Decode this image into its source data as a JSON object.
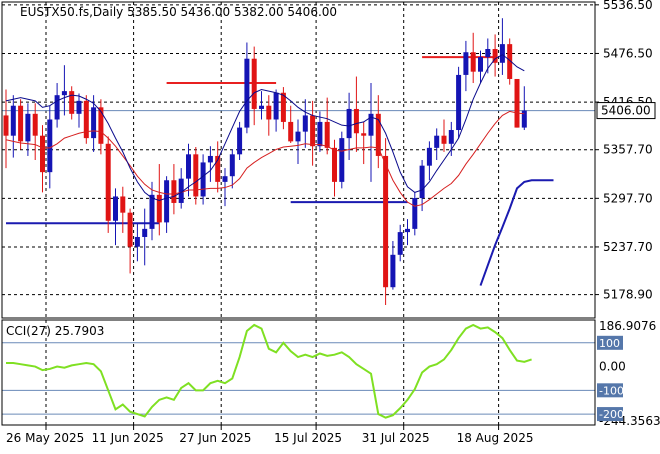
{
  "chart_data": [
    {
      "type": "candlestick",
      "header": {
        "symbol": "EUSTX50.fs,Daily",
        "open": "5385.50",
        "high": "5436.00",
        "low": "5382.00",
        "close": "5406.00"
      },
      "current_price_label": "5406.00",
      "current_price": 5406,
      "ylim": [
        5150,
        5540
      ],
      "y_ticks": [
        {
          "value": 5536.5,
          "label": "5536.50"
        },
        {
          "value": 5476.5,
          "label": "5476.50"
        },
        {
          "value": 5416.5,
          "label": "5416.50"
        },
        {
          "value": 5357.7,
          "label": "5357.70"
        },
        {
          "value": 5297.7,
          "label": "5297.70"
        },
        {
          "value": 5237.7,
          "label": "5237.70"
        },
        {
          "value": 5178.9,
          "label": "5178.90"
        }
      ],
      "x_ticks": [
        {
          "index": 0,
          "label": "26 May 2025"
        },
        {
          "index": 12,
          "label": "11 Jun 2025"
        },
        {
          "index": 24,
          "label": "27 Jun 2025"
        },
        {
          "index": 37,
          "label": "15 Jul 2025"
        },
        {
          "index": 49,
          "label": "31 Jul 2025"
        },
        {
          "index": 62,
          "label": "18 Aug 2025"
        }
      ],
      "candles": [
        [
          5400,
          5432,
          5335,
          5375
        ],
        [
          5375,
          5425,
          5348,
          5412
        ],
        [
          5412,
          5420,
          5358,
          5368
        ],
        [
          5368,
          5415,
          5350,
          5402
        ],
        [
          5402,
          5415,
          5345,
          5375
        ],
        [
          5375,
          5388,
          5305,
          5330
        ],
        [
          5330,
          5412,
          5310,
          5395
        ],
        [
          5395,
          5440,
          5385,
          5425
        ],
        [
          5425,
          5462,
          5400,
          5430
        ],
        [
          5430,
          5436,
          5395,
          5402
        ],
        [
          5402,
          5427,
          5385,
          5418
        ],
        [
          5418,
          5425,
          5365,
          5372
        ],
        [
          5372,
          5425,
          5355,
          5410
        ],
        [
          5410,
          5420,
          5352,
          5365
        ],
        [
          5365,
          5374,
          5255,
          5270
        ],
        [
          5270,
          5310,
          5240,
          5300
        ],
        [
          5300,
          5312,
          5255,
          5280
        ],
        [
          5280,
          5285,
          5205,
          5238
        ],
        [
          5238,
          5266,
          5220,
          5250
        ],
        [
          5250,
          5285,
          5215,
          5260
        ],
        [
          5260,
          5318,
          5246,
          5302
        ],
        [
          5302,
          5340,
          5252,
          5268
        ],
        [
          5268,
          5325,
          5255,
          5320
        ],
        [
          5320,
          5340,
          5278,
          5292
        ],
        [
          5292,
          5335,
          5285,
          5322
        ],
        [
          5322,
          5365,
          5300,
          5352
        ],
        [
          5352,
          5361,
          5290,
          5300
        ],
        [
          5300,
          5352,
          5290,
          5342
        ],
        [
          5342,
          5362,
          5318,
          5350
        ],
        [
          5350,
          5368,
          5305,
          5318
        ],
        [
          5318,
          5335,
          5288,
          5325
        ],
        [
          5325,
          5358,
          5310,
          5352
        ],
        [
          5352,
          5392,
          5345,
          5385
        ],
        [
          5385,
          5490,
          5378,
          5470
        ],
        [
          5470,
          5485,
          5388,
          5408
        ],
        [
          5408,
          5430,
          5395,
          5412
        ],
        [
          5412,
          5425,
          5375,
          5395
        ],
        [
          5395,
          5432,
          5380,
          5428
        ],
        [
          5428,
          5435,
          5383,
          5392
        ],
        [
          5392,
          5412,
          5366,
          5368
        ],
        [
          5368,
          5395,
          5340,
          5380
        ],
        [
          5380,
          5420,
          5360,
          5400
        ],
        [
          5400,
          5418,
          5338,
          5362
        ],
        [
          5362,
          5405,
          5355,
          5392
        ],
        [
          5392,
          5422,
          5352,
          5360
        ],
        [
          5360,
          5370,
          5300,
          5318
        ],
        [
          5318,
          5380,
          5310,
          5372
        ],
        [
          5372,
          5428,
          5345,
          5408
        ],
        [
          5408,
          5448,
          5355,
          5378
        ],
        [
          5378,
          5392,
          5340,
          5375
        ],
        [
          5375,
          5440,
          5318,
          5402
        ],
        [
          5402,
          5425,
          5335,
          5350
        ],
        [
          5350,
          5372,
          5166,
          5188
        ],
        [
          5188,
          5245,
          5185,
          5228
        ],
        [
          5228,
          5265,
          5220,
          5256
        ],
        [
          5256,
          5272,
          5240,
          5260
        ],
        [
          5260,
          5305,
          5252,
          5298
        ],
        [
          5298,
          5345,
          5282,
          5338
        ],
        [
          5338,
          5368,
          5320,
          5360
        ],
        [
          5360,
          5384,
          5345,
          5375
        ],
        [
          5375,
          5395,
          5355,
          5365
        ],
        [
          5365,
          5392,
          5350,
          5382
        ],
        [
          5382,
          5460,
          5372,
          5450
        ],
        [
          5450,
          5492,
          5430,
          5478
        ],
        [
          5478,
          5502,
          5440,
          5454
        ],
        [
          5454,
          5480,
          5440,
          5472
        ],
        [
          5472,
          5495,
          5452,
          5482
        ],
        [
          5482,
          5500,
          5448,
          5465
        ],
        [
          5465,
          5520,
          5450,
          5488
        ],
        [
          5488,
          5495,
          5438,
          5445
        ],
        [
          5445,
          5445,
          5385,
          5385
        ],
        [
          5385,
          5436,
          5382,
          5406
        ]
      ],
      "series": [
        {
          "color": "#d62020",
          "values": [
            5370,
            5368,
            5366,
            5365,
            5364,
            5360,
            5360,
            5365,
            5372,
            5375,
            5378,
            5380,
            5381,
            5380,
            5372,
            5362,
            5350,
            5338,
            5325,
            5315,
            5308,
            5305,
            5303,
            5303,
            5305,
            5308,
            5308,
            5309,
            5310,
            5310,
            5311,
            5314,
            5322,
            5335,
            5342,
            5348,
            5353,
            5358,
            5361,
            5362,
            5363,
            5365,
            5364,
            5364,
            5362,
            5357,
            5356,
            5358,
            5360,
            5360,
            5361,
            5360,
            5340,
            5320,
            5305,
            5293,
            5288,
            5290,
            5296,
            5303,
            5310,
            5316,
            5326,
            5340,
            5352,
            5365,
            5378,
            5390,
            5400,
            5405,
            5403,
            5402
          ]
        },
        {
          "color": "#0a0a8c",
          "values": [
            5418,
            5420,
            5422,
            5420,
            5418,
            5410,
            5412,
            5418,
            5422,
            5425,
            5424,
            5420,
            5415,
            5405,
            5390,
            5372,
            5355,
            5335,
            5318,
            5305,
            5298,
            5295,
            5298,
            5300,
            5305,
            5312,
            5318,
            5325,
            5332,
            5345,
            5365,
            5385,
            5405,
            5418,
            5428,
            5432,
            5430,
            5428,
            5425,
            5418,
            5410,
            5404,
            5400,
            5398,
            5396,
            5392,
            5388,
            5387,
            5390,
            5392,
            5398,
            5395,
            5378,
            5355,
            5330,
            5312,
            5305,
            5308,
            5318,
            5332,
            5345,
            5358,
            5372,
            5395,
            5420,
            5440,
            5458,
            5470,
            5475,
            5468,
            5460,
            5455
          ]
        }
      ],
      "levels": [
        {
          "color": "#1a1ab0",
          "value": 5267,
          "from": 0,
          "to": 21
        },
        {
          "color": "#e82020",
          "value": 5440,
          "from": 22,
          "to": 37
        },
        {
          "color": "#1a1ab0",
          "value": 5293,
          "from": 39,
          "to": 55
        },
        {
          "color": "#e82020",
          "value": 5472,
          "from": 57,
          "to": 67
        }
      ],
      "atr_stop": {
        "color": "#1a1ab0",
        "points": [
          [
            65,
            5190
          ],
          [
            66,
            5215
          ],
          [
            67,
            5240
          ],
          [
            68,
            5262
          ],
          [
            69,
            5285
          ],
          [
            70,
            5310
          ],
          [
            71,
            5318
          ],
          [
            72,
            5320
          ],
          [
            73,
            5320
          ],
          [
            74,
            5320
          ],
          [
            75,
            5320
          ]
        ]
      }
    },
    {
      "type": "line",
      "title": "CCI(27) 25.7903",
      "ylim": [
        -246,
        196
      ],
      "y_ticks": [
        {
          "value": 186.9076,
          "label": "186.9076"
        },
        {
          "value": 0,
          "label": "0.00"
        },
        {
          "value": -244.3563,
          "label": "-244.3563"
        }
      ],
      "levels": [
        {
          "value": 100,
          "label": "100"
        },
        {
          "value": -100,
          "label": "-100"
        },
        {
          "value": -200,
          "label": "-200"
        }
      ],
      "series": [
        {
          "color": "#7fe022",
          "values": [
            15,
            15,
            10,
            5,
            0,
            -15,
            -10,
            0,
            -5,
            5,
            10,
            15,
            10,
            -20,
            -100,
            -180,
            -160,
            -190,
            -200,
            -210,
            -170,
            -140,
            -130,
            -140,
            -90,
            -70,
            -100,
            -100,
            -70,
            -60,
            -70,
            -50,
            40,
            150,
            175,
            160,
            75,
            60,
            100,
            65,
            40,
            50,
            40,
            55,
            45,
            50,
            60,
            40,
            10,
            -10,
            -30,
            -200,
            -215,
            -205,
            -175,
            -140,
            -95,
            -25,
            0,
            10,
            30,
            70,
            120,
            160,
            175,
            160,
            165,
            145,
            120,
            70,
            25,
            20,
            30
          ]
        }
      ],
      "current_value": 25.7903
    }
  ]
}
